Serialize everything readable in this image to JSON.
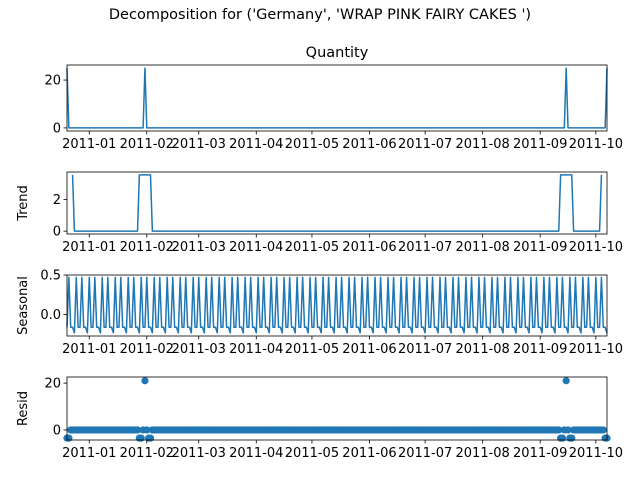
{
  "figure_title": "Decomposition for ('Germany', 'WRAP PINK FAIRY CAKES ')",
  "chart_data": [
    {
      "type": "line",
      "panel": "observed",
      "title": "Quantity",
      "ylabel": "",
      "ylim": [
        -1.3,
        26.3
      ],
      "yticks": [
        0,
        20
      ],
      "xticklabels": [
        "2011-01",
        "2011-02",
        "2011-03",
        "2011-04",
        "2011-05",
        "2011-06",
        "2011-07",
        "2011-08",
        "2011-09",
        "2011-10"
      ],
      "points": [
        {
          "x": "2010-12-20",
          "y": 25
        },
        {
          "x": "2010-12-21",
          "y": 0
        },
        {
          "x": "2011-01-30",
          "y": 0
        },
        {
          "x": "2011-01-31",
          "y": 25
        },
        {
          "x": "2011-02-01",
          "y": 0
        },
        {
          "x": "2011-09-14",
          "y": 0
        },
        {
          "x": "2011-09-15",
          "y": 25
        },
        {
          "x": "2011-09-16",
          "y": 0
        },
        {
          "x": "2011-10-06",
          "y": 0
        },
        {
          "x": "2011-10-07",
          "y": 25
        }
      ]
    },
    {
      "type": "line",
      "panel": "trend",
      "title": "",
      "ylabel": "Trend",
      "ylim": [
        -0.18,
        3.75
      ],
      "yticks": [
        0,
        2
      ],
      "xticklabels": [
        "2011-01",
        "2011-02",
        "2011-03",
        "2011-04",
        "2011-05",
        "2011-06",
        "2011-07",
        "2011-08",
        "2011-09",
        "2011-10"
      ],
      "points": [
        {
          "x": "2010-12-23",
          "y": 3.57
        },
        {
          "x": "2010-12-24",
          "y": 0
        },
        {
          "x": "2011-01-27",
          "y": 0
        },
        {
          "x": "2011-01-28",
          "y": 3.57
        },
        {
          "x": "2011-02-03",
          "y": 3.57
        },
        {
          "x": "2011-02-04",
          "y": 0
        },
        {
          "x": "2011-09-11",
          "y": 0
        },
        {
          "x": "2011-09-12",
          "y": 3.57
        },
        {
          "x": "2011-09-18",
          "y": 3.57
        },
        {
          "x": "2011-09-19",
          "y": 0
        },
        {
          "x": "2011-10-03",
          "y": 0
        },
        {
          "x": "2011-10-04",
          "y": 3.57
        }
      ]
    },
    {
      "type": "line",
      "panel": "seasonal",
      "title": "",
      "ylabel": "Seasonal",
      "ylim": [
        -0.27,
        0.5
      ],
      "yticks": [
        0.0,
        0.5
      ],
      "ytick_labels": [
        "0.0",
        "0.5"
      ],
      "xticklabels": [
        "2011-01",
        "2011-02",
        "2011-03",
        "2011-04",
        "2011-05",
        "2011-06",
        "2011-07",
        "2011-08",
        "2011-09",
        "2011-10"
      ],
      "period_days": 7,
      "start": "2010-12-20",
      "end": "2011-10-07",
      "cycle": [
        -0.16,
        0.47,
        -0.16,
        -0.16,
        -0.23,
        0.47,
        -0.16
      ]
    },
    {
      "type": "scatter",
      "panel": "resid",
      "title": "",
      "ylabel": "Resid",
      "ylim": [
        -4.3,
        22.6
      ],
      "yticks": [
        0,
        20
      ],
      "xticklabels": [
        "2011-01",
        "2011-02",
        "2011-03",
        "2011-04",
        "2011-05",
        "2011-06",
        "2011-07",
        "2011-08",
        "2011-09",
        "2011-10"
      ],
      "start": "2010-12-20",
      "end": "2011-10-07",
      "baseline": 0,
      "outliers": [
        {
          "x": "2011-01-31",
          "y": 21
        },
        {
          "x": "2011-09-15",
          "y": 21
        }
      ],
      "low_points": [
        {
          "x": "2010-12-20",
          "y": -3.5
        },
        {
          "x": "2010-12-21",
          "y": -3.5
        },
        {
          "x": "2011-01-28",
          "y": -3.5
        },
        {
          "x": "2011-01-29",
          "y": -3.5
        },
        {
          "x": "2011-02-02",
          "y": -3.5
        },
        {
          "x": "2011-02-03",
          "y": -3.5
        },
        {
          "x": "2011-09-12",
          "y": -3.5
        },
        {
          "x": "2011-09-13",
          "y": -3.5
        },
        {
          "x": "2011-09-17",
          "y": -3.5
        },
        {
          "x": "2011-09-18",
          "y": -3.5
        },
        {
          "x": "2011-10-06",
          "y": -3.5
        },
        {
          "x": "2011-10-07",
          "y": -3.5
        }
      ]
    }
  ],
  "colors": {
    "series": "#1f77b4",
    "axis": "#000000"
  }
}
